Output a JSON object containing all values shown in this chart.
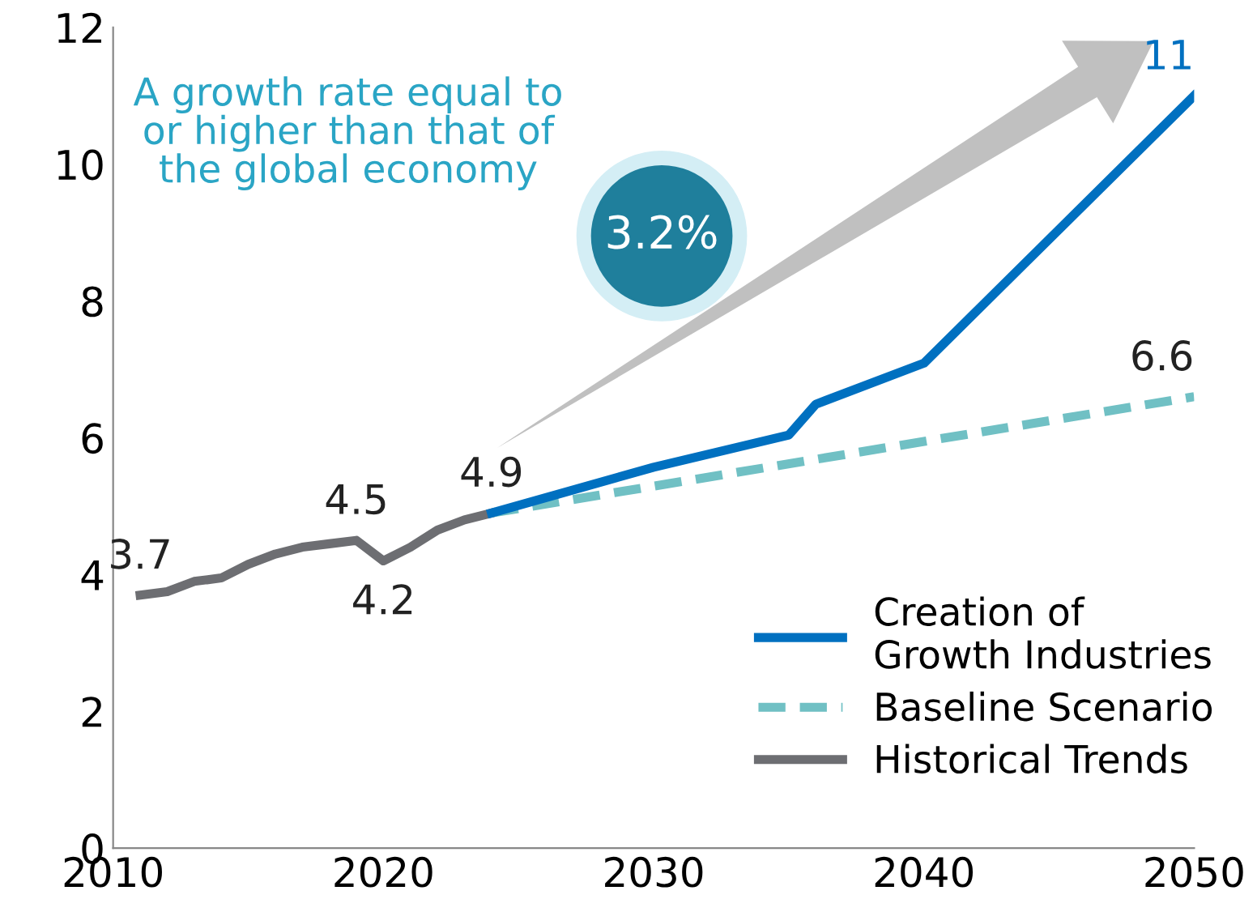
{
  "chart_data": {
    "type": "line",
    "legend": "bottom right",
    "grid": false,
    "xlim": [
      2010,
      2050
    ],
    "xticks": [
      2010,
      2020,
      2030,
      2040,
      2050
    ],
    "ylim": [
      0,
      12
    ],
    "yticks": [
      0,
      2,
      4,
      6,
      8,
      10,
      12
    ],
    "annotations": [
      "A growth rate equal to\nor higher than that of\nthe global economy",
      "3.2%"
    ],
    "series": [
      {
        "name": "Creation of\nGrowth Industries",
        "color": "#0070c0",
        "line_style": "solid",
        "x": [
          2024,
          2030,
          2035,
          2036,
          2040,
          2050
        ],
        "values": [
          4.9,
          5.57,
          6.04,
          6.49,
          7.09,
          11
        ],
        "value_labels": [
          null,
          null,
          null,
          null,
          null,
          "11"
        ]
      },
      {
        "name": "Baseline Scenario",
        "color": "#70c0c4",
        "line_style": "dashed",
        "x": [
          2024,
          2050
        ],
        "values": [
          4.9,
          6.6
        ],
        "value_labels": [
          null,
          "6.6"
        ]
      },
      {
        "name": "Historical Trends",
        "color": "#6d6e72",
        "line_style": "solid",
        "x": [
          2011,
          2012,
          2013,
          2014,
          2015,
          2016,
          2017,
          2018,
          2019,
          2020,
          2021,
          2022,
          2023,
          2024
        ],
        "values": [
          3.7,
          3.75,
          3.9,
          3.95,
          4.15,
          4.3,
          4.4,
          4.45,
          4.5,
          4.2,
          4.4,
          4.65,
          4.8,
          4.9
        ],
        "value_labels": [
          "3.7",
          null,
          null,
          null,
          null,
          null,
          null,
          null,
          "4.5",
          "4.2",
          null,
          null,
          null,
          "4.9"
        ]
      }
    ]
  }
}
